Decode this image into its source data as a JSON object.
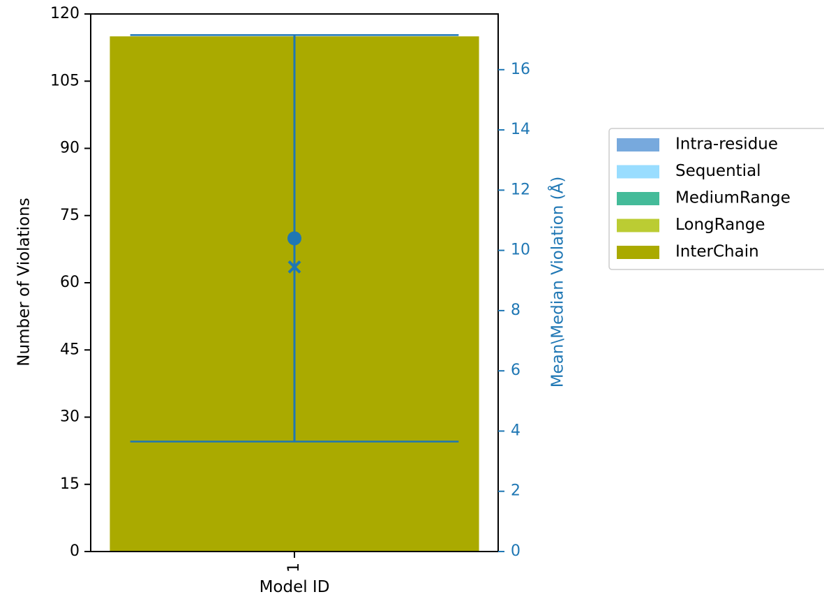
{
  "chart_data": {
    "type": "bar",
    "title": "",
    "xlabel": "Model ID",
    "ylabel": "Number of Violations",
    "ylabel_right": "Mean\\Median Violation (Å)",
    "categories": [
      "1"
    ],
    "ylim": [
      0,
      120
    ],
    "yticks": [
      0,
      15,
      30,
      45,
      60,
      75,
      90,
      105,
      120
    ],
    "ylim_right": [
      0,
      17.85
    ],
    "yticks_right": [
      0,
      2,
      4,
      6,
      8,
      10,
      12,
      14,
      16
    ],
    "series": [
      {
        "name": "Intra-residue",
        "color": "#77a9dd",
        "values": [
          0
        ]
      },
      {
        "name": "Sequential",
        "color": "#99ddff",
        "values": [
          0
        ]
      },
      {
        "name": "MediumRange",
        "color": "#44bb99",
        "values": [
          0
        ]
      },
      {
        "name": "LongRange",
        "color": "#bbcc33",
        "values": [
          0
        ]
      },
      {
        "name": "InterChain",
        "color": "#aaaa00",
        "values": [
          115
        ]
      }
    ],
    "violation_stats": {
      "color": "#1f77b4",
      "mean": [
        10.4
      ],
      "median": [
        9.45
      ],
      "min": [
        3.65
      ],
      "max": [
        17.15
      ]
    },
    "legend": {
      "placement": "right"
    },
    "grid": false
  }
}
